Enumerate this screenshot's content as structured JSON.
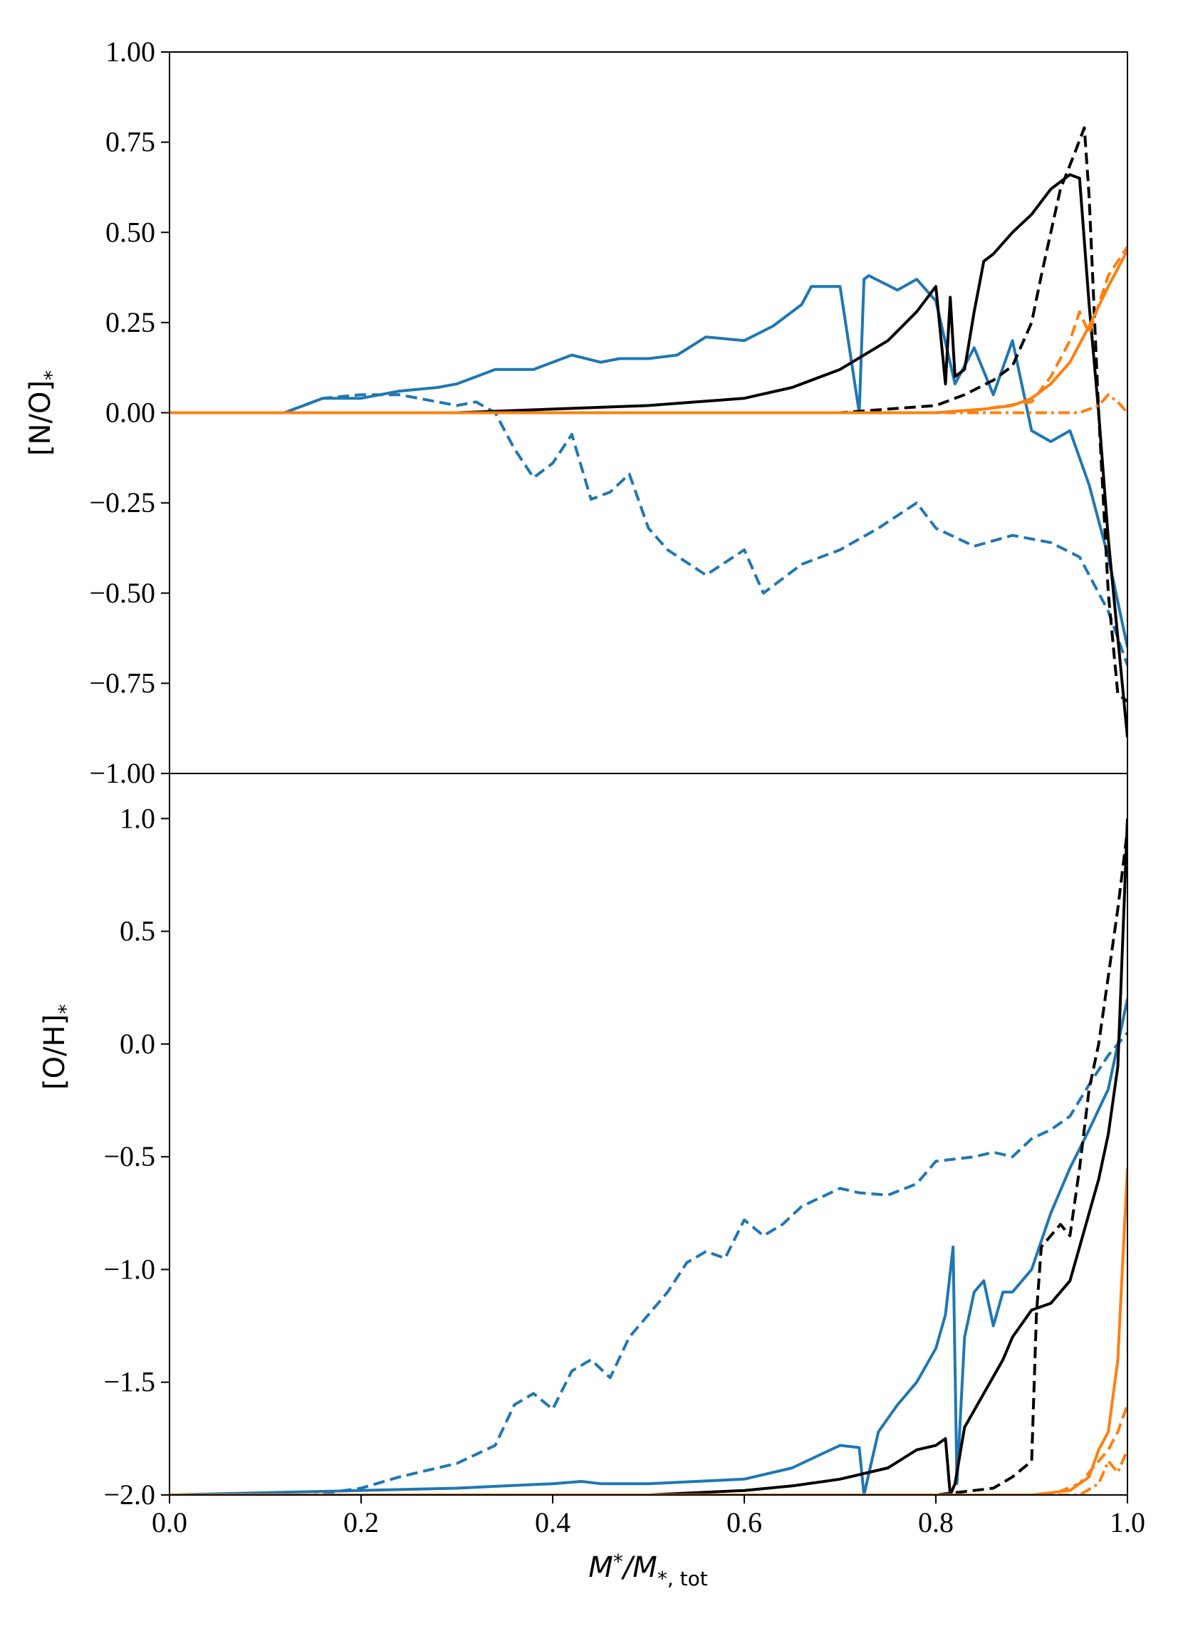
{
  "chart_data": [
    {
      "type": "line",
      "panel": "top",
      "ylabel": "[N/O]",
      "ylabel_sub": "*",
      "xlabel": "",
      "xlim": [
        0.0,
        1.0
      ],
      "ylim": [
        -1.0,
        1.0
      ],
      "grid": false,
      "yticks": [
        {
          "value": 1.0,
          "label": "1.00"
        },
        {
          "value": 0.75,
          "label": "0.75"
        },
        {
          "value": 0.5,
          "label": "0.50"
        },
        {
          "value": 0.25,
          "label": "0.25"
        },
        {
          "value": 0.0,
          "label": "0.00"
        },
        {
          "value": -0.25,
          "label": "−0.25"
        },
        {
          "value": -0.5,
          "label": "−0.50"
        },
        {
          "value": -0.75,
          "label": "−0.75"
        },
        {
          "value": -1.0,
          "label": "−1.00"
        }
      ],
      "series": [
        {
          "name": "blue-solid",
          "color": "#1f77b4",
          "dash": "solid",
          "x": [
            0,
            0.12,
            0.14,
            0.16,
            0.2,
            0.24,
            0.28,
            0.3,
            0.34,
            0.38,
            0.42,
            0.45,
            0.47,
            0.5,
            0.53,
            0.56,
            0.6,
            0.63,
            0.66,
            0.67,
            0.7,
            0.72,
            0.725,
            0.73,
            0.76,
            0.78,
            0.8,
            0.82,
            0.84,
            0.86,
            0.88,
            0.9,
            0.92,
            0.94,
            0.96,
            0.98,
            1.0
          ],
          "y": [
            0,
            0.0,
            0.02,
            0.04,
            0.04,
            0.06,
            0.07,
            0.08,
            0.12,
            0.12,
            0.16,
            0.14,
            0.15,
            0.15,
            0.16,
            0.21,
            0.2,
            0.24,
            0.3,
            0.35,
            0.35,
            0.0,
            0.37,
            0.38,
            0.34,
            0.37,
            0.31,
            0.08,
            0.18,
            0.05,
            0.2,
            -0.05,
            -0.08,
            -0.05,
            -0.2,
            -0.4,
            -0.65
          ]
        },
        {
          "name": "blue-dashed",
          "color": "#1f77b4",
          "dash": "dashed",
          "x": [
            0,
            0.12,
            0.16,
            0.2,
            0.24,
            0.28,
            0.3,
            0.32,
            0.34,
            0.36,
            0.38,
            0.4,
            0.42,
            0.44,
            0.46,
            0.48,
            0.5,
            0.52,
            0.56,
            0.6,
            0.62,
            0.66,
            0.7,
            0.74,
            0.78,
            0.8,
            0.84,
            0.88,
            0.92,
            0.95,
            0.98,
            1.0
          ],
          "y": [
            0,
            0.0,
            0.04,
            0.05,
            0.05,
            0.03,
            0.02,
            0.03,
            0.0,
            -0.1,
            -0.18,
            -0.14,
            -0.06,
            -0.24,
            -0.22,
            -0.17,
            -0.32,
            -0.38,
            -0.45,
            -0.38,
            -0.5,
            -0.42,
            -0.38,
            -0.32,
            -0.25,
            -0.32,
            -0.37,
            -0.34,
            -0.36,
            -0.4,
            -0.55,
            -0.7
          ]
        },
        {
          "name": "black-solid",
          "color": "#000000",
          "dash": "solid",
          "x": [
            0,
            0.3,
            0.4,
            0.5,
            0.55,
            0.6,
            0.65,
            0.7,
            0.75,
            0.78,
            0.8,
            0.81,
            0.815,
            0.82,
            0.83,
            0.84,
            0.85,
            0.86,
            0.88,
            0.9,
            0.92,
            0.94,
            0.95,
            0.96,
            0.97,
            0.98,
            1.0
          ],
          "y": [
            0,
            0.0,
            0.01,
            0.02,
            0.03,
            0.04,
            0.07,
            0.12,
            0.2,
            0.28,
            0.35,
            0.08,
            0.32,
            0.1,
            0.12,
            0.28,
            0.42,
            0.44,
            0.5,
            0.55,
            0.62,
            0.66,
            0.65,
            0.3,
            0.0,
            -0.35,
            -0.9
          ]
        },
        {
          "name": "black-dashed",
          "color": "#000000",
          "dash": "dashed",
          "x": [
            0,
            0.5,
            0.6,
            0.7,
            0.75,
            0.8,
            0.83,
            0.86,
            0.88,
            0.9,
            0.91,
            0.92,
            0.93,
            0.945,
            0.955,
            0.96,
            0.97,
            0.98,
            0.99,
            1.0
          ],
          "y": [
            0,
            0.0,
            0.0,
            0.0,
            0.01,
            0.02,
            0.05,
            0.09,
            0.13,
            0.25,
            0.38,
            0.5,
            0.62,
            0.72,
            0.79,
            0.6,
            0.0,
            -0.5,
            -0.78,
            -0.8
          ]
        },
        {
          "name": "orange-solid",
          "color": "#ff7f0e",
          "dash": "solid",
          "x": [
            0,
            0.7,
            0.8,
            0.85,
            0.88,
            0.9,
            0.92,
            0.94,
            0.96,
            0.98,
            1.0
          ],
          "y": [
            0,
            0.0,
            0.0,
            0.01,
            0.02,
            0.04,
            0.08,
            0.14,
            0.24,
            0.35,
            0.45
          ]
        },
        {
          "name": "orange-dashed",
          "color": "#ff7f0e",
          "dash": "dashed",
          "x": [
            0,
            0.8,
            0.85,
            0.9,
            0.92,
            0.94,
            0.95,
            0.96,
            0.97,
            0.98,
            0.99,
            1.0
          ],
          "y": [
            0,
            0.0,
            0.01,
            0.03,
            0.1,
            0.2,
            0.28,
            0.22,
            0.3,
            0.38,
            0.42,
            0.46
          ]
        },
        {
          "name": "orange-dashdot",
          "color": "#ff7f0e",
          "dash": "dashdot",
          "x": [
            0,
            0.9,
            0.95,
            0.97,
            0.98,
            0.99,
            1.0
          ],
          "y": [
            0,
            0.0,
            0.0,
            0.02,
            0.05,
            0.03,
            0.0
          ]
        }
      ]
    },
    {
      "type": "line",
      "panel": "bottom",
      "ylabel": "[O/H]",
      "ylabel_sub": "*",
      "xlabel": "M",
      "xlabel_sub": "*",
      "xlabel_rest": "/M",
      "xlabel_rest_sub": "*, tot",
      "xlim": [
        0.0,
        1.0
      ],
      "ylim": [
        -2.0,
        1.2
      ],
      "grid": false,
      "xticks": [
        {
          "value": 0.0,
          "label": "0.0"
        },
        {
          "value": 0.2,
          "label": "0.2"
        },
        {
          "value": 0.4,
          "label": "0.4"
        },
        {
          "value": 0.6,
          "label": "0.6"
        },
        {
          "value": 0.8,
          "label": "0.8"
        },
        {
          "value": 1.0,
          "label": "1.0"
        }
      ],
      "yticks": [
        {
          "value": 1.0,
          "label": "1.0"
        },
        {
          "value": 0.5,
          "label": "0.5"
        },
        {
          "value": 0.0,
          "label": "0.0"
        },
        {
          "value": -0.5,
          "label": "−0.5"
        },
        {
          "value": -1.0,
          "label": "−1.0"
        },
        {
          "value": -1.5,
          "label": "−1.5"
        },
        {
          "value": -2.0,
          "label": "−2.0"
        }
      ],
      "series": [
        {
          "name": "blue-dashed",
          "color": "#1f77b4",
          "dash": "dashed",
          "x": [
            0,
            0.15,
            0.2,
            0.24,
            0.28,
            0.3,
            0.34,
            0.36,
            0.38,
            0.4,
            0.42,
            0.44,
            0.46,
            0.48,
            0.5,
            0.52,
            0.54,
            0.56,
            0.58,
            0.6,
            0.62,
            0.64,
            0.66,
            0.7,
            0.72,
            0.75,
            0.78,
            0.8,
            0.84,
            0.86,
            0.88,
            0.9,
            0.92,
            0.94,
            0.96,
            0.98,
            1.0
          ],
          "y": [
            -2.0,
            -2.0,
            -1.97,
            -1.92,
            -1.88,
            -1.86,
            -1.78,
            -1.6,
            -1.55,
            -1.62,
            -1.45,
            -1.4,
            -1.48,
            -1.3,
            -1.2,
            -1.1,
            -0.97,
            -0.92,
            -0.95,
            -0.78,
            -0.85,
            -0.8,
            -0.72,
            -0.64,
            -0.66,
            -0.67,
            -0.62,
            -0.52,
            -0.5,
            -0.48,
            -0.5,
            -0.42,
            -0.38,
            -0.32,
            -0.18,
            -0.05,
            0.05
          ]
        },
        {
          "name": "blue-solid",
          "color": "#1f77b4",
          "dash": "solid",
          "x": [
            0,
            0.2,
            0.3,
            0.35,
            0.4,
            0.43,
            0.45,
            0.5,
            0.55,
            0.6,
            0.65,
            0.68,
            0.7,
            0.72,
            0.725,
            0.74,
            0.76,
            0.78,
            0.8,
            0.81,
            0.818,
            0.822,
            0.83,
            0.84,
            0.85,
            0.86,
            0.87,
            0.88,
            0.9,
            0.92,
            0.94,
            0.96,
            0.98,
            1.0
          ],
          "y": [
            -2.0,
            -1.98,
            -1.97,
            -1.96,
            -1.95,
            -1.94,
            -1.95,
            -1.95,
            -1.94,
            -1.93,
            -1.88,
            -1.82,
            -1.78,
            -1.79,
            -2.0,
            -1.72,
            -1.6,
            -1.5,
            -1.35,
            -1.2,
            -0.9,
            -1.95,
            -1.3,
            -1.1,
            -1.05,
            -1.25,
            -1.1,
            -1.1,
            -1.0,
            -0.75,
            -0.55,
            -0.38,
            -0.2,
            0.2
          ]
        },
        {
          "name": "black-solid",
          "color": "#000000",
          "dash": "solid",
          "x": [
            0,
            0.5,
            0.6,
            0.65,
            0.7,
            0.75,
            0.78,
            0.8,
            0.81,
            0.815,
            0.82,
            0.83,
            0.85,
            0.87,
            0.88,
            0.9,
            0.92,
            0.93,
            0.94,
            0.95,
            0.96,
            0.97,
            0.98,
            0.99,
            1.0
          ],
          "y": [
            -2.0,
            -2.0,
            -1.98,
            -1.96,
            -1.93,
            -1.88,
            -1.8,
            -1.78,
            -1.75,
            -2.0,
            -1.95,
            -1.7,
            -1.55,
            -1.4,
            -1.3,
            -1.18,
            -1.15,
            -1.1,
            -1.05,
            -0.9,
            -0.75,
            -0.6,
            -0.4,
            -0.1,
            1.0
          ]
        },
        {
          "name": "black-dashed",
          "color": "#000000",
          "dash": "dashed",
          "x": [
            0,
            0.7,
            0.8,
            0.84,
            0.86,
            0.88,
            0.9,
            0.905,
            0.91,
            0.92,
            0.93,
            0.94,
            0.95,
            0.96,
            0.97,
            0.98,
            0.99,
            1.0
          ],
          "y": [
            -2.0,
            -2.0,
            -2.0,
            -1.98,
            -1.97,
            -1.92,
            -1.85,
            -1.2,
            -0.9,
            -0.85,
            -0.8,
            -0.85,
            -0.55,
            -0.2,
            0.0,
            0.3,
            0.6,
            0.95
          ]
        },
        {
          "name": "orange-solid",
          "color": "#ff7f0e",
          "dash": "solid",
          "x": [
            0,
            0.9,
            0.94,
            0.96,
            0.97,
            0.98,
            0.99,
            1.0
          ],
          "y": [
            -2.0,
            -2.0,
            -1.98,
            -1.92,
            -1.8,
            -1.72,
            -1.4,
            -0.55
          ]
        },
        {
          "name": "orange-dashed",
          "color": "#ff7f0e",
          "dash": "dashed",
          "x": [
            0,
            0.92,
            0.95,
            0.97,
            0.98,
            0.99,
            1.0
          ],
          "y": [
            -2.0,
            -2.0,
            -1.95,
            -1.85,
            -1.8,
            -1.72,
            -1.6
          ]
        },
        {
          "name": "orange-dashdot",
          "color": "#ff7f0e",
          "dash": "dashdot",
          "x": [
            0,
            0.95,
            0.97,
            0.98,
            0.99,
            1.0
          ],
          "y": [
            -2.0,
            -2.0,
            -1.95,
            -1.85,
            -1.9,
            -1.8
          ]
        }
      ]
    }
  ]
}
